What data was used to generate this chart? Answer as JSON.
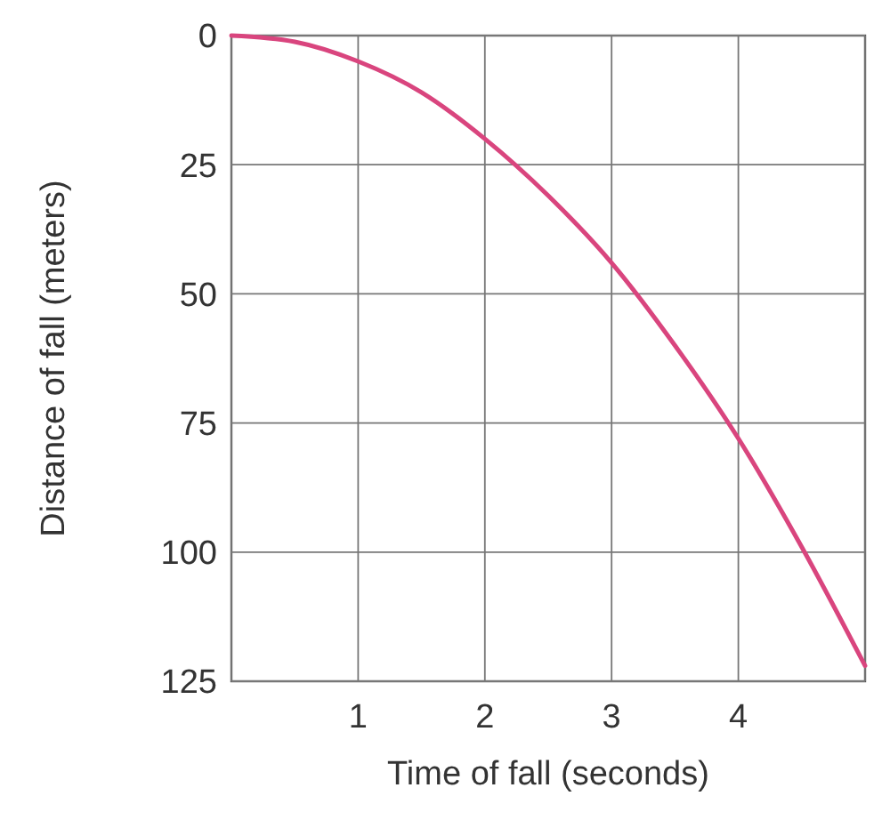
{
  "chart_data": {
    "type": "line",
    "xlabel": "Time of fall (seconds)",
    "ylabel": "Distance of fall (meters)",
    "x": [
      0,
      0.5,
      1,
      1.5,
      2,
      2.5,
      3,
      3.5,
      4,
      4.5,
      5
    ],
    "series": [
      {
        "color": "#d9457e",
        "values": [
          0,
          1.2,
          5,
          11,
          20,
          31,
          44,
          60,
          78,
          99,
          122
        ]
      }
    ],
    "xlim": [
      0,
      5
    ],
    "xticks": [
      {
        "value": 0,
        "label": null
      },
      1,
      2,
      3,
      4,
      {
        "value": 5,
        "label": null
      }
    ],
    "ylim": [
      125,
      0
    ],
    "yticks": [
      0,
      25,
      50,
      75,
      100,
      125
    ],
    "grid": true,
    "marker": "none",
    "line_style": "solid"
  }
}
